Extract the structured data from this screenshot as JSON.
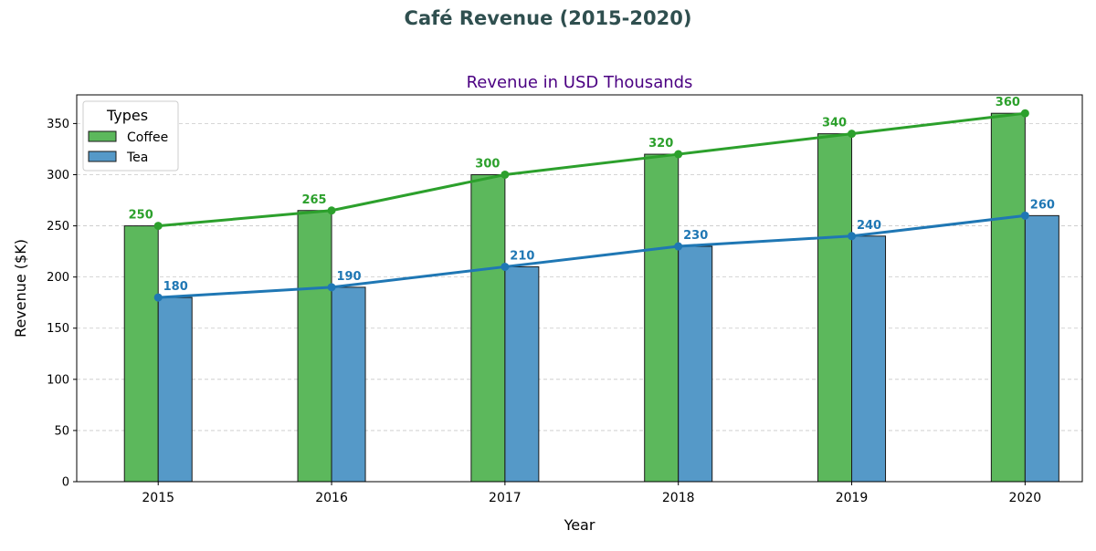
{
  "figure": {
    "suptitle": "Café Revenue (2015-2020)"
  },
  "colors": {
    "coffee": "#2ca02c",
    "coffee_bar": "#5cb85c",
    "tea": "#1f77b4",
    "tea_bar": "#5599c8",
    "title": "#4b0082",
    "suptitle": "#2f4f4f",
    "grid": "#c8c8c8"
  },
  "chart_data": {
    "type": "bar",
    "overlay": "line",
    "title": "Revenue in USD Thousands",
    "xlabel": "Year",
    "ylabel": "Revenue ($K)",
    "categories": [
      "2015",
      "2016",
      "2017",
      "2018",
      "2019",
      "2020"
    ],
    "ylim": [
      0,
      378
    ],
    "yticks": [
      0,
      50,
      100,
      150,
      200,
      250,
      300,
      350
    ],
    "grid": "y-dashed",
    "legend": {
      "title": "Types",
      "position": "top-left"
    },
    "series": [
      {
        "name": "Coffee",
        "values": [
          250,
          265,
          300,
          320,
          340,
          360
        ]
      },
      {
        "name": "Tea",
        "values": [
          180,
          190,
          210,
          230,
          240,
          260
        ]
      }
    ]
  }
}
